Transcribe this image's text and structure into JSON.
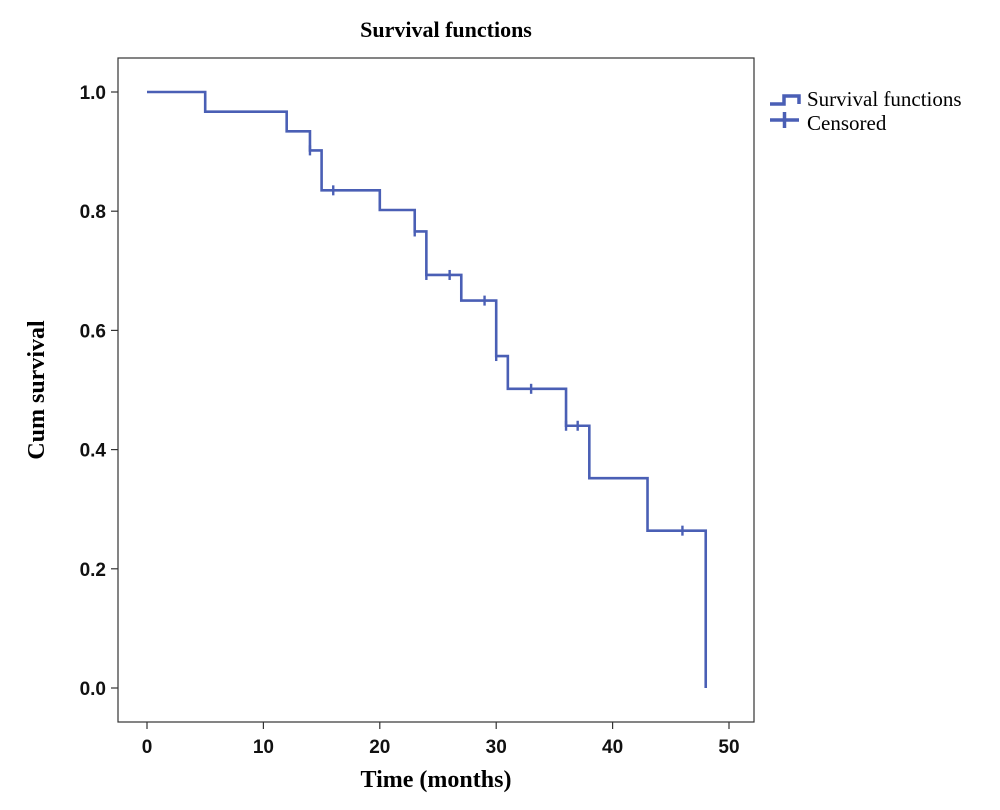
{
  "chart_data": {
    "type": "line",
    "title": "Survival functions",
    "xlabel": "Time (months)",
    "ylabel": "Cum survival",
    "xlim": [
      0,
      50
    ],
    "ylim": [
      0,
      1
    ],
    "x_ticks": [
      0,
      10,
      20,
      30,
      40,
      50
    ],
    "x_tick_labels": [
      "0",
      "10",
      "20",
      "30",
      "40",
      "50"
    ],
    "y_ticks": [
      0,
      0.2,
      0.4,
      0.6,
      0.8,
      1.0
    ],
    "y_tick_labels": [
      "0.0",
      "0.2",
      "0.4",
      "0.6",
      "0.8",
      "1.0"
    ],
    "grid": false,
    "legend_position": "right-top",
    "series": [
      {
        "name": "Survival functions",
        "style": "step",
        "color": "#4a5fb5",
        "points": [
          [
            0,
            1.0
          ],
          [
            5,
            0.967
          ],
          [
            12,
            0.934
          ],
          [
            14,
            0.902
          ],
          [
            15,
            0.835
          ],
          [
            20,
            0.802
          ],
          [
            23,
            0.766
          ],
          [
            24,
            0.693
          ],
          [
            27,
            0.65
          ],
          [
            30,
            0.557
          ],
          [
            31,
            0.502
          ],
          [
            36,
            0.44
          ],
          [
            38,
            0.352
          ],
          [
            43,
            0.264
          ],
          [
            48,
            0.0
          ]
        ]
      },
      {
        "name": "Censored",
        "style": "marker",
        "color": "#4a5fb5",
        "points": [
          [
            14,
            0.902
          ],
          [
            16,
            0.835
          ],
          [
            23,
            0.766
          ],
          [
            24,
            0.693
          ],
          [
            26,
            0.693
          ],
          [
            29,
            0.65
          ],
          [
            30,
            0.557
          ],
          [
            33,
            0.502
          ],
          [
            36,
            0.44
          ],
          [
            37,
            0.44
          ],
          [
            46,
            0.264
          ]
        ]
      }
    ]
  }
}
